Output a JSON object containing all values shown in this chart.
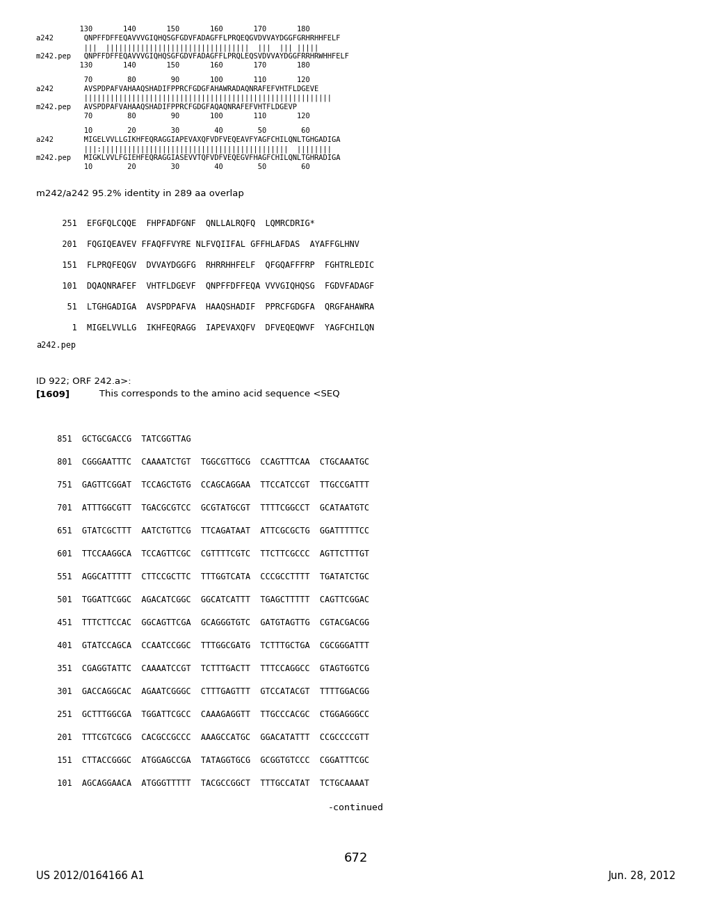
{
  "header_left": "US 2012/0164166 A1",
  "header_right": "Jun. 28, 2012",
  "page_number": "672",
  "continued_label": "-continued",
  "dna_lines": [
    "  101  AGCAGGAACA  ATGGGTTTTT  TACGCCGGCT  TTTGCCATAT  TCTGCAAAAT",
    "  151  CTTACCGGGC  ATGGAGCCGA  TATAGGTGCG  GCGGTGTCCC  CGGATTTCGC",
    "  201  TTTCGTCGCG  CACGCCGCCC  AAAGCCATGC  GGACATATTT  CCGCCCCGTT",
    "  251  GCTTTGGCGA  TGGATTCGCC  CAAAGAGGTT  TTGCCCACGC  CTGGAGGGCC",
    "  301  GACCAGGCAC  AGAATCGGGC  CTTTGAGTTT  GTCCATACGT  TTTTGGACGG",
    "  351  CGAGGTATTC  CAAAATCCGT  TCTTTGACTT  TTTCCAGGCC  GTAGTGGTCG",
    "  401  GTATCCAGCA  CCAATCCGGC  TTTGGCGATG  TCTTTGCTGA  CGCGGGATTT",
    "  451  TTTCTTCCAC  GGCAGTTCGA  GCAGGGTGTC  GATGTAGTTG  CGTACGACGG",
    "  501  TGGATTCGGC  AGACATCGGC  GGCATCATTT  TGAGCTTTTT  CAGTTCGGAC",
    "  551  AGGCATTTTT  CTTCCGCTTC  TTTGGTCATA  CCCGCCTTTT  TGATATCTGC",
    "  601  TTCCAAGGCA  TCCAGTTCGC  CGTTTTCGTC  TTCTTCGCCC  AGTTCTTTGT",
    "  651  GTATCGCTTT  AATCTGTTCG  TTCAGATAAT  ATTCGCGCTG  GGATTTTTCC",
    "  701  ATTTGGCGTT  TGACGCGTCC  GCGTATGCGT  TTTTCGGCCT  GCATAATGTC",
    "  751  GAGTTCGGAT  TCCAGCTGTG  CCAGCAGGAA  TTCCATCCGT  TTGCCGATTT",
    "  801  CGGGAATTTC  CAAAATCTGT  TGGCGTTGCG  CCAGTTTCAA  CTGCAAATGC",
    "  851  GCTGCGACCG  TATCGGTTAG"
  ],
  "bracket_text": "[1609]",
  "bracket_desc": "   This corresponds to the amino acid sequence <SEQ\nID 922; ORF 242.a>:",
  "pep_label": "a242.pep",
  "pep_lines": [
    "     1  MIGELVVLLG  IKHFEQRAGG  IAPEVAXQFV  DFVEQEQWVF  YAGFCHILQN",
    "    51  LTGHGADIGA  AVSPDPAFVA  HAAQSHADIF  PPRCFGDGFA  QRGFAHAWRA",
    "   101  DQAQNRAFEF  VHTFLDGEVF  QNPFFDFFEQA  VVVGIQHQSG  FGDVFADAGF",
    "   151  FLPRQFEQGV  DVVAYDGGFG  RHRRHHFELF  QFGQAFFFRP  FGHTRLEDIC",
    "   201  FQGIQEAVEV_FFAQFFVYRE_NLFVQIIFAL_GFFHLAFDAS  AYAFFGLHNV",
    "   251  EFGFQLCQQE  FHPFADFGNF  QNLLALRQFQ  LQMRCDRIG*"
  ],
  "pep_lines_display": [
    "     1  MIGELVVLLG  IKHFEQRAGG  IAPEVAXQFV  DFVEQEQWVF  YAGFCHILQN",
    "    51  LTGHGADIGA  AVSPDPAFVA  HAAQSHADIF  PPRCFGDGFA  QRGFAHAWRA",
    "   101  DQAQNRAFEF  VHTFLDGEVF  QNPFFDFFEQA VVVGIQHQSG  FGDVFADAGF",
    "   151  FLPRQFEQGV  DVVAYDGGFG  RHRRHHFELF  QFGQAFFFRP  FGHTRLEDIC",
    "   201  FQGIQEAVEV FFAQFFVYRE NLFVQIIFAL GFFHLAFDAS  AYAFFGLHNV",
    "   251  EFGFQLCQQE  FHPFADFGNF  QNLLALRQFQ  LQMRCDRIG*"
  ],
  "identity_line": "m242/a242 95.2% identity in 289 aa overlap",
  "align_block1_header": "           10        20        30        40        50        60",
  "align_block1_m242": "m242.pep   MIGKLVVLFGIEHFEQRAGGIASEVVTQFVDFVEQEGVFHAGFCHILQNLTGHRADIGA",
  "align_block1_bars": "           |||:|||||||||||||||||||||||||||||||||||||||||||  ||||||||",
  "align_block1_a242": "a242       MIGELVVLLGIKHFEQRAGGIAPEVAXQFVDFVEQEAVFYAGFCHILQNLTGHGADIGA",
  "align_block1_footer": "           10        20        30        40        50        60",
  "align_block2_header": "           70        80        90       100       110       120",
  "align_block2_m242": "m242.pep   AVSPDPAFVAHAAQSHADIFPPRCFGDGFAQAQNRAFEFVHTFLDGEVP",
  "align_block2_bars": "           |||||||||||||||||||||||||||||||||||||||||||||||||||||||||",
  "align_block2_a242": "a242       AVSPDPAFVAHAAQSHADIFPPRCFGDGFAHAWRADAQNRAFEFVHTFLDGEVE",
  "align_block2_footer": "           70        80        90       100       110       120",
  "align_block3_header": "          130       140       150       160       170       180",
  "align_block3_m242": "m242.pep   QNPFFDFFEQAVVVGIQHQSGFGDVFADAGFFLPRQLEQSVDVVAYDGGFRRHRWHHFELF",
  "align_block3_bars": "           |||  |||||||||||||||||||||||||||||||||  |||  ||| |||||",
  "align_block3_a242": "a242       QNPFFDFFEQAVVVGIQHQSGFGDVFADAGFFLPRQEQGVDVVAYDGGFGRHRHHFELF",
  "align_block3_footer": "          130       140       150       160       170       180",
  "background_color": "#ffffff",
  "text_color": "#000000",
  "font_size_header": 11,
  "font_size_body": 8.5,
  "font_size_mono": 8.0
}
